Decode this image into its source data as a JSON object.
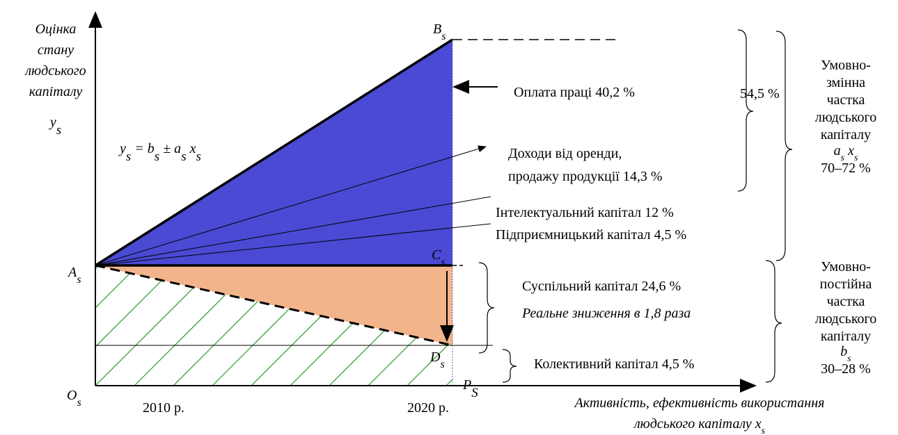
{
  "y_axis_label": {
    "lines": [
      "Оцінка",
      "стану",
      "людського",
      "капіталу"
    ],
    "symbol": {
      "t": "y",
      "sub": "s"
    }
  },
  "x_axis_label": {
    "lines": [
      "Активність, ефективність використання"
    ],
    "last": [
      {
        "t": "людського капіталу x",
        "sub": "s"
      }
    ]
  },
  "points": {
    "origin": {
      "t": "O",
      "sub": "s"
    },
    "A": {
      "t": "A",
      "sub": "s"
    },
    "B": {
      "t": "B",
      "sub": "s"
    },
    "C": {
      "t": "C",
      "sub": "s"
    },
    "D": {
      "t": "D",
      "sub": "s"
    },
    "P": {
      "t": "P",
      "sub": "S"
    }
  },
  "years": [
    "2010 р.",
    "2020 р."
  ],
  "formula": [
    {
      "t": "y",
      "sub": "s"
    },
    {
      "t": " = b",
      "sub": "s"
    },
    {
      "t": " ± a",
      "sub": "s"
    },
    {
      "t": " x",
      "sub": "s"
    }
  ],
  "components": {
    "wages": "Оплата праці 40,2 %",
    "rent": [
      "Доходи від оренди,",
      "продажу продукції 14,3 %"
    ],
    "intellectual": "Інтелектуальний капітал 12 %",
    "entrepreneurial": "Підприємницький капітал 4,5 %",
    "social": "Суспільний капітал 24,6 %",
    "decline": "Реальне зниження в 1,8 раза",
    "collective": "Колективний капітал 4,5 %"
  },
  "groups": {
    "subtotal": "54,5 %",
    "variable": {
      "lines": [
        "Умовно-",
        "змінна",
        "частка",
        "людського",
        "капіталу"
      ],
      "symbol": [
        {
          "t": "a",
          "sub": "s"
        },
        {
          "t": " x",
          "sub": "s"
        }
      ],
      "share": "70–72 %"
    },
    "constant": {
      "lines": [
        "Умовно-",
        "постійна",
        "частка",
        "людського",
        "капіталу"
      ],
      "symbol": [
        {
          "t": "b",
          "sub": "s"
        }
      ],
      "share": "30–28 %"
    }
  }
}
